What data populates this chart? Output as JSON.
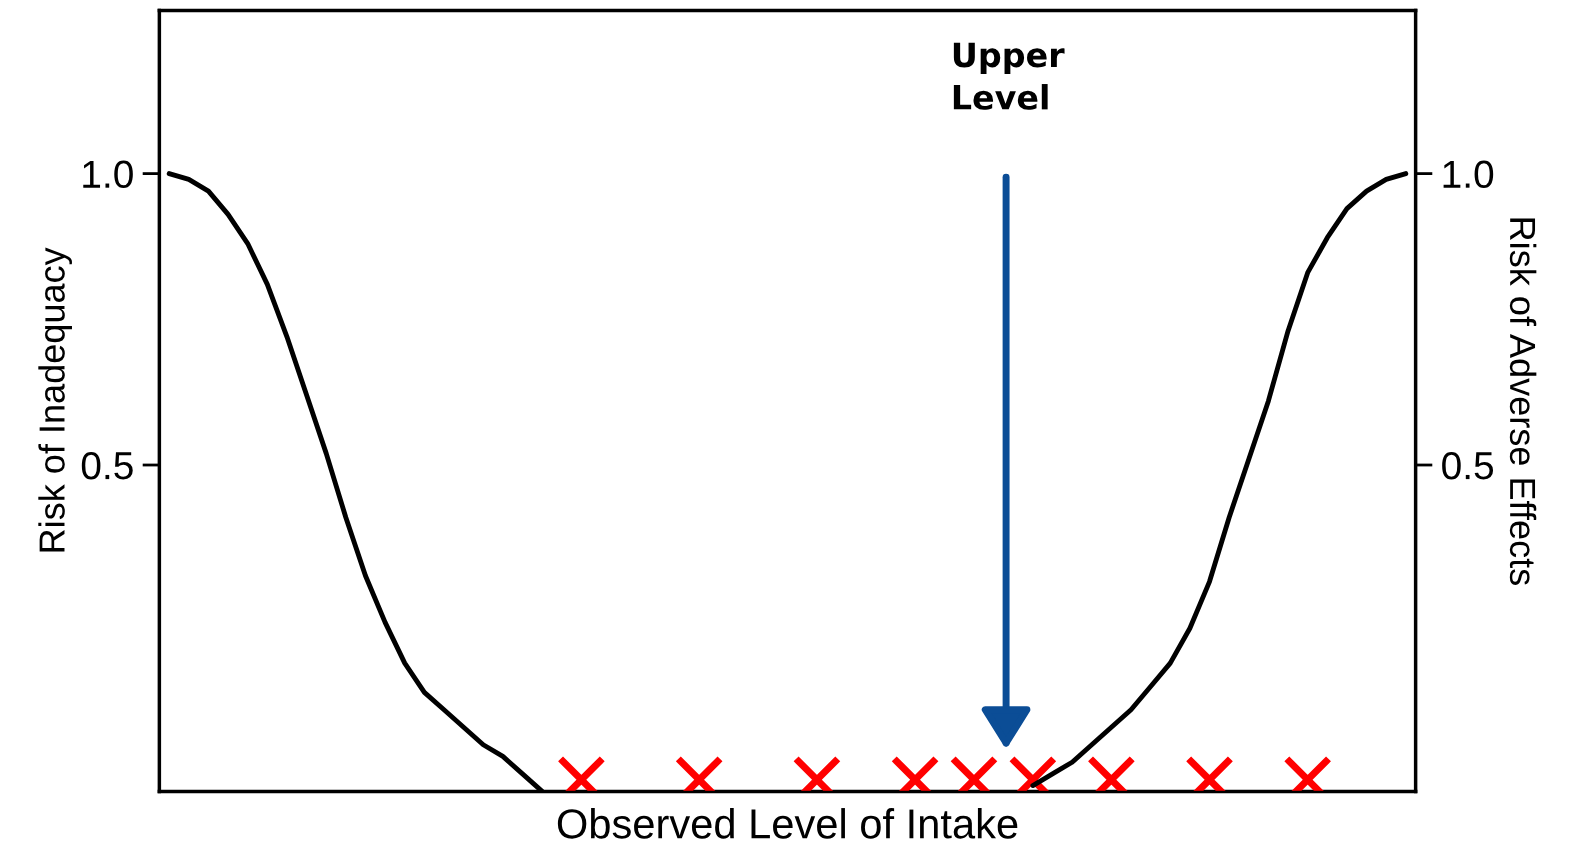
{
  "chart_data": {
    "type": "line",
    "xlabel": "Observed Level of Intake",
    "ylabel": "Risk of Inadequacy",
    "y2label": "Risk of Adverse Effects",
    "categories": [
      null,
      null,
      null,
      null,
      null,
      null,
      null,
      null,
      null,
      null,
      null,
      null,
      null,
      null,
      null,
      null,
      null,
      null,
      null,
      null,
      null,
      null,
      null,
      null,
      null,
      null,
      null,
      null,
      null,
      null,
      null,
      null,
      null,
      null,
      null,
      null,
      null,
      null,
      null,
      null,
      null,
      null,
      null,
      null,
      null,
      null,
      null,
      null,
      null,
      null,
      null,
      null,
      null,
      null,
      null,
      null,
      null,
      null,
      null,
      null,
      null,
      null,
      null,
      null
    ],
    "series": [
      {
        "color": "#000000",
        "marker": "none",
        "values": [
          1.0,
          0.99,
          0.97,
          0.93,
          0.88,
          0.81,
          0.72,
          0.62,
          0.52,
          0.41,
          0.31,
          0.23,
          0.16,
          0.11,
          0.08,
          0.05,
          0.02,
          0.0,
          -0.03,
          -0.06,
          null,
          null,
          null,
          null,
          null,
          null,
          null,
          null,
          null,
          null,
          null,
          null,
          null,
          null,
          null,
          null,
          null,
          null,
          null,
          null,
          null,
          null,
          null,
          null,
          null,
          null,
          null,
          null,
          null,
          null,
          null,
          null,
          null,
          null,
          null,
          null,
          null,
          null,
          null,
          null,
          null,
          null,
          null,
          null
        ]
      },
      {
        "axis": "y2",
        "color": "#000000",
        "marker": "none",
        "values": [
          null,
          null,
          null,
          null,
          null,
          null,
          null,
          null,
          null,
          null,
          null,
          null,
          null,
          null,
          null,
          null,
          null,
          null,
          null,
          null,
          null,
          null,
          null,
          null,
          null,
          null,
          null,
          null,
          null,
          null,
          null,
          null,
          null,
          null,
          null,
          null,
          null,
          null,
          null,
          null,
          null,
          null,
          null,
          null,
          -0.05,
          -0.03,
          -0.01,
          0.02,
          0.05,
          0.08,
          0.12,
          0.16,
          0.22,
          0.3,
          0.41,
          0.51,
          0.61,
          0.73,
          0.83,
          0.89,
          0.94,
          0.97,
          0.99,
          1.0
        ]
      },
      {
        "type": "scatter",
        "color": "#ff0000",
        "marker": "cross",
        "values": [
          null,
          null,
          null,
          null,
          null,
          null,
          null,
          null,
          null,
          null,
          null,
          null,
          null,
          null,
          null,
          null,
          null,
          null,
          null,
          null,
          null,
          -0.04,
          null,
          null,
          null,
          null,
          null,
          -0.04,
          null,
          null,
          null,
          null,
          null,
          -0.04,
          null,
          null,
          null,
          null,
          -0.04,
          null,
          null,
          -0.04,
          null,
          null,
          -0.04,
          null,
          null,
          null,
          -0.04,
          null,
          null,
          null,
          null,
          -0.04,
          null,
          null,
          null,
          null,
          -0.04,
          null,
          null,
          null,
          null,
          null
        ]
      }
    ],
    "ylim": [
      -0.06,
      1.28
    ],
    "yticks": [
      0.5,
      {
        "value": 1,
        "label": "1.0"
      }
    ],
    "y2lim": [
      -0.06,
      1.28
    ],
    "y2ticks": [
      0.5,
      {
        "value": 1,
        "label": "1.0"
      }
    ],
    "tick_labels": "y",
    "grid": false,
    "legend": false,
    "annotations": [
      "Upper Level"
    ]
  }
}
